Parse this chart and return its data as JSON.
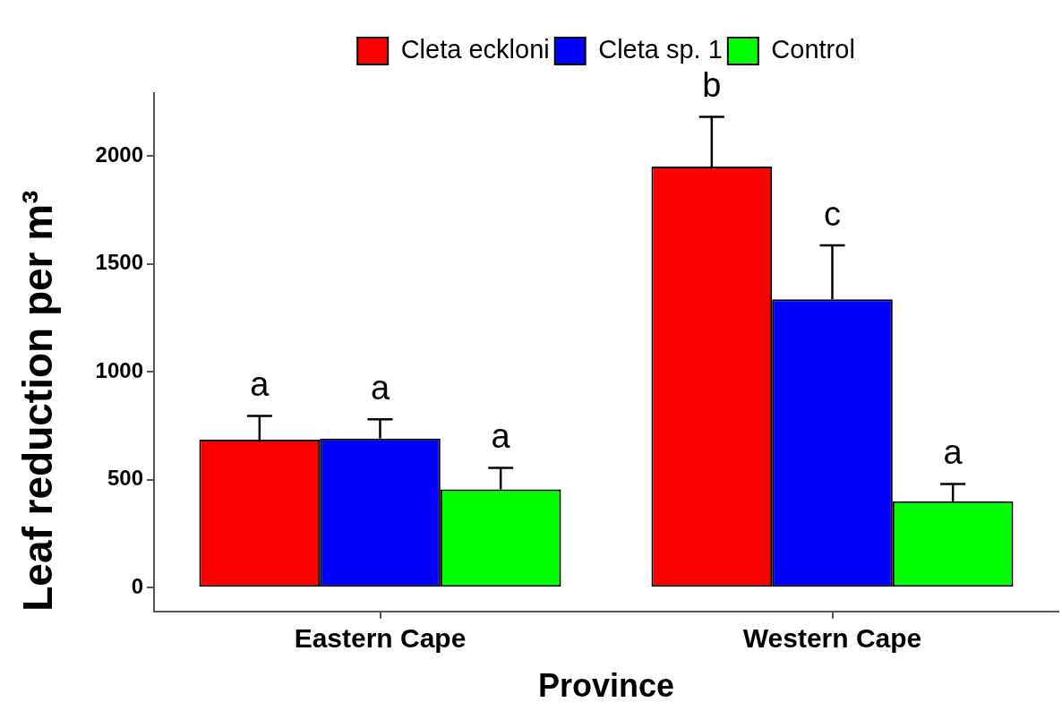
{
  "chart_data": {
    "type": "bar",
    "categories": [
      "Eastern Cape",
      "Western Cape"
    ],
    "xlabel": "Province",
    "ylabel": "Leaf reduction per m³",
    "ylim": [
      -110,
      2290
    ],
    "yticks": [
      0,
      500,
      1000,
      1500,
      2000
    ],
    "grid": false,
    "legend": "top",
    "series": [
      {
        "name": "Cleta eckloni",
        "color": "#ff0000",
        "values": [
          685,
          1950
        ],
        "errors": [
          [
            685,
            795
          ],
          [
            1950,
            2180
          ]
        ],
        "value_labels": [
          "a",
          "b"
        ]
      },
      {
        "name": "Cleta sp. 1",
        "color": "#0000ff",
        "values": [
          690,
          1335
        ],
        "errors": [
          [
            690,
            780
          ],
          [
            1335,
            1585
          ]
        ],
        "value_labels": [
          "a",
          "c"
        ]
      },
      {
        "name": "Control",
        "color": "#00ff00",
        "values": [
          455,
          400
        ],
        "errors": [
          [
            455,
            555
          ],
          [
            400,
            480
          ]
        ],
        "value_labels": [
          "a",
          "a"
        ]
      }
    ]
  }
}
